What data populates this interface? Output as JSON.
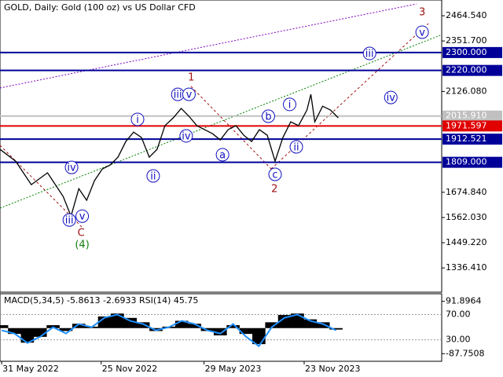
{
  "chart_data": [
    {
      "type": "line",
      "title": "GOLD, Daily:  Gold (100 oz) vs US Dollar CFD",
      "color": "#000000",
      "x": [
        -3,
        25,
        53,
        82,
        110,
        124,
        138,
        152,
        166,
        180,
        194,
        208,
        222,
        236,
        250,
        264,
        278,
        292,
        307,
        321,
        335,
        349,
        363,
        377,
        391,
        405,
        419,
        433,
        447,
        461,
        475,
        489,
        503,
        517,
        531,
        546,
        553,
        560,
        574,
        588,
        602
      ],
      "values": [
        1867,
        1814,
        1709,
        1762,
        1656,
        1568,
        1691,
        1639,
        1727,
        1779,
        1797,
        1832,
        1902,
        1944,
        1920,
        1832,
        1867,
        1973,
        2008,
        2050,
        2015,
        1973,
        1955,
        1937,
        1909,
        1955,
        1973,
        1930,
        1902,
        1955,
        1930,
        1814,
        1920,
        1990,
        1973,
        2043,
        2113,
        1990,
        2060,
        2043,
        2008
      ],
      "xlim": [
        -3,
        787
      ],
      "ylim": [
        1228,
        2535
      ],
      "xticks": [
        {
          "value": 0,
          "label": "31 May 2022"
        },
        {
          "value": 178,
          "label": "25 Nov 2022"
        },
        {
          "value": 362,
          "label": "29 May 2023"
        },
        {
          "value": 541,
          "label": "23 Nov 2023"
        }
      ],
      "yticks": [
        {
          "value": 2464.54,
          "label": "2464.540"
        },
        {
          "value": 2351.7,
          "label": "2351.700"
        },
        {
          "value": 2126.08,
          "label": "2126.080"
        },
        {
          "value": 1674.84,
          "label": "1674.840"
        },
        {
          "value": 1562.03,
          "label": "1562.030"
        },
        {
          "value": 1449.22,
          "label": "1449.220"
        },
        {
          "value": 1336.41,
          "label": "1336.410"
        }
      ],
      "levels": [
        {
          "value": 2300,
          "label": "2300.000",
          "color": "#000099"
        },
        {
          "value": 2220,
          "label": "2220.000",
          "color": "#000099"
        },
        {
          "value": 2015.91,
          "label": "2015.910",
          "color": "#c0c0c0"
        },
        {
          "value": 1971.597,
          "label": "1971.597",
          "color": "#e00000"
        },
        {
          "value": 1912.521,
          "label": "1912.521",
          "color": "#000099"
        },
        {
          "value": 1809,
          "label": "1809.000",
          "color": "#000099"
        }
      ],
      "annotations": [
        {
          "text": "1",
          "x": 339,
          "y": 2190,
          "color": "#a01010",
          "circled": false
        },
        {
          "text": "2",
          "x": 488,
          "y": 1691,
          "color": "#a01010",
          "circled": false
        },
        {
          "text": "3",
          "x": 752,
          "y": 2482,
          "color": "#a01010",
          "circled": false
        },
        {
          "text": "C",
          "x": 142,
          "y": 1495,
          "color": "#a01010",
          "circled": false
        },
        {
          "text": "(4)",
          "x": 144,
          "y": 1442,
          "color": "#108010",
          "circled": false
        },
        {
          "text": "iii",
          "x": 121,
          "y": 1551,
          "color": "#1010c0",
          "circled": true
        },
        {
          "text": "v",
          "x": 144,
          "y": 1568,
          "color": "#1010c0",
          "circled": true
        },
        {
          "text": "iv",
          "x": 125,
          "y": 1786,
          "color": "#1010c0",
          "circled": true
        },
        {
          "text": "i",
          "x": 243,
          "y": 2001,
          "color": "#1010c0",
          "circled": true
        },
        {
          "text": "ii",
          "x": 271,
          "y": 1748,
          "color": "#1010c0",
          "circled": true
        },
        {
          "text": "iii",
          "x": 315,
          "y": 2113,
          "color": "#1010c0",
          "circled": true
        },
        {
          "text": "v",
          "x": 335,
          "y": 2113,
          "color": "#1010c0",
          "circled": true
        },
        {
          "text": "iv",
          "x": 330,
          "y": 1927,
          "color": "#1010c0",
          "circled": true
        },
        {
          "text": "a",
          "x": 395,
          "y": 1843,
          "color": "#1010c0",
          "circled": true
        },
        {
          "text": "b",
          "x": 477,
          "y": 2015,
          "color": "#1010c0",
          "circled": true
        },
        {
          "text": "c",
          "x": 489,
          "y": 1755,
          "color": "#1010c0",
          "circled": true
        },
        {
          "text": "i",
          "x": 515,
          "y": 2068,
          "color": "#1010c0",
          "circled": true
        },
        {
          "text": "ii",
          "x": 527,
          "y": 1878,
          "color": "#1010c0",
          "circled": true
        },
        {
          "text": "iii",
          "x": 658,
          "y": 2296,
          "color": "#1010c0",
          "circled": true
        },
        {
          "text": "iv",
          "x": 696,
          "y": 2099,
          "color": "#1010c0",
          "circled": true
        },
        {
          "text": "v",
          "x": 752,
          "y": 2391,
          "color": "#1010c0",
          "circled": true
        }
      ]
    },
    {
      "type": "line",
      "title": "MACD(5,34,5) -5.8613 -2.6933 RSI(14) 45.75",
      "x": [
        0,
        23,
        46,
        69,
        92,
        115,
        138,
        161,
        184,
        207,
        230,
        253,
        276,
        299,
        322,
        345,
        368,
        391,
        414,
        437,
        460,
        483,
        506,
        529,
        552,
        575,
        598
      ],
      "series": [
        {
          "type": "bar",
          "axis": "y2",
          "color": "#000000",
          "values": [
            10,
            -20,
            -50,
            -30,
            10,
            -10,
            15,
            5,
            40,
            50,
            35,
            20,
            -10,
            5,
            25,
            15,
            -10,
            -25,
            10,
            -20,
            -55,
            20,
            45,
            50,
            30,
            20,
            -5
          ]
        },
        {
          "type": "line",
          "color": "#1e90ff",
          "values": [
            45,
            40,
            25,
            35,
            50,
            40,
            55,
            50,
            65,
            70,
            60,
            55,
            45,
            50,
            60,
            55,
            45,
            40,
            55,
            35,
            20,
            50,
            65,
            70,
            60,
            55,
            45
          ]
        }
      ],
      "xlim": [
        -3,
        787
      ],
      "ylim": [
        -4,
        103
      ],
      "yticks": [
        {
          "value": 70,
          "label": "70.00"
        },
        {
          "value": 30,
          "label": "30.00"
        }
      ],
      "y2lim": [
        -114,
        118
      ],
      "y2ticks": [
        91.8964,
        -87.7508
      ]
    }
  ]
}
